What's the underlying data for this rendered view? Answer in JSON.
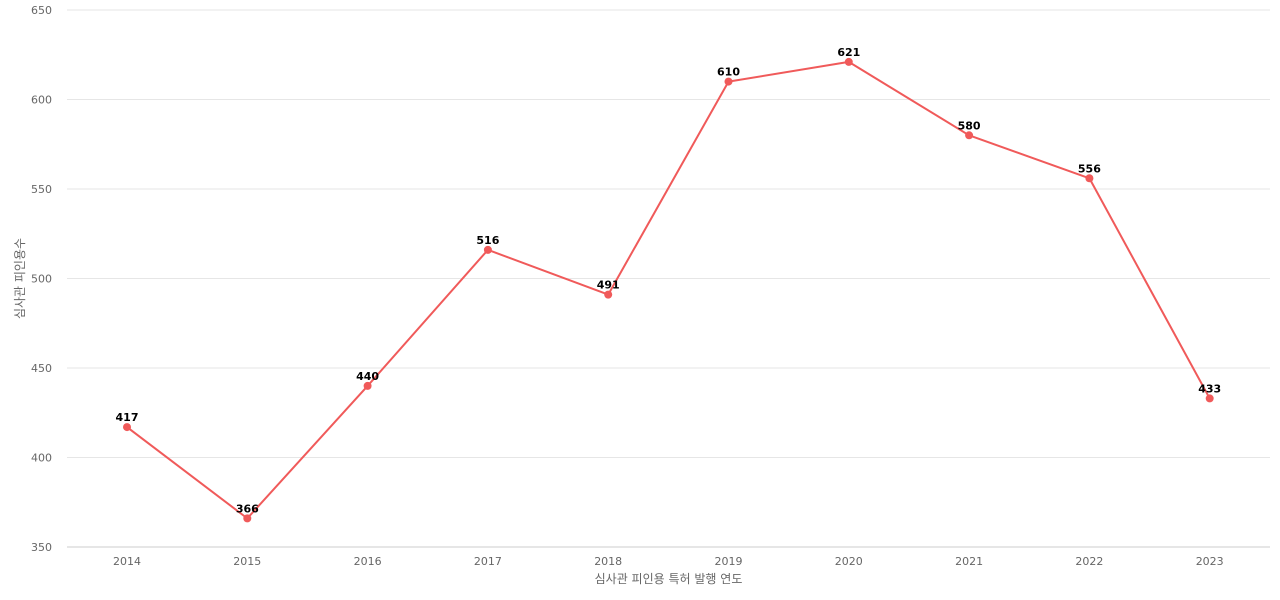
{
  "chart_data": {
    "type": "line",
    "title": "",
    "xlabel": "심사관 피인용 특허 발행 연도",
    "ylabel": "심사관 피인용수",
    "categories": [
      "2014",
      "2015",
      "2016",
      "2017",
      "2018",
      "2019",
      "2020",
      "2021",
      "2022",
      "2023"
    ],
    "series": [
      {
        "values": [
          417,
          366,
          440,
          516,
          491,
          610,
          621,
          580,
          556,
          433
        ],
        "color": "#f05a5a"
      }
    ],
    "ylim": [
      350,
      650
    ],
    "yticks": [
      350,
      400,
      450,
      500,
      550,
      600,
      650
    ],
    "grid": true,
    "legend": "none",
    "data_labels": true
  }
}
